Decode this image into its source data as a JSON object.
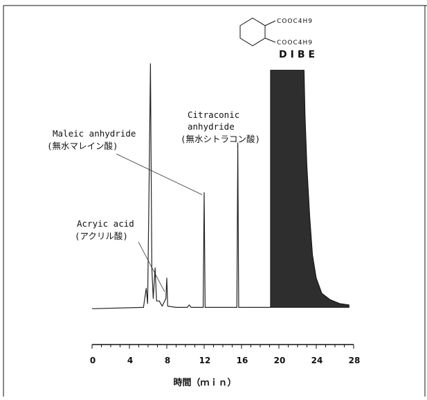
{
  "chart_data": {
    "type": "line",
    "title": "",
    "xlabel": "時間（ｍｉｎ）",
    "ylabel": "",
    "xlim": [
      0,
      28
    ],
    "x_ticks": [
      "0",
      "4",
      "8",
      "12",
      "16",
      "20",
      "24",
      "28"
    ],
    "grid": false,
    "legend": "none",
    "annotations": [
      {
        "id": "maleic",
        "lines": [
          "Maleic anhydride",
          "(無水マレイン酸)"
        ],
        "peak_x": 12.0
      },
      {
        "id": "citraconic",
        "lines": [
          "Citraconic",
          "anhydride",
          "(無水シトラコン酸)"
        ],
        "peak_x": 15.6
      },
      {
        "id": "acrylic",
        "lines": [
          "Acryic acid",
          "(アクリル酸)"
        ],
        "peak_x": 8.0
      }
    ],
    "structure": {
      "substituent_1": "COOC4H9",
      "substituent_2": "COOC4H9",
      "name": "DIBE"
    },
    "series": [
      {
        "values": [
          [
            0,
            0.04
          ],
          [
            5.5,
            0.045
          ],
          [
            5.8,
            0.12
          ],
          [
            5.95,
            0.06
          ],
          [
            6.1,
            0.5
          ],
          [
            6.25,
            1.0
          ],
          [
            6.4,
            0.2
          ],
          [
            6.55,
            0.08
          ],
          [
            6.75,
            0.2
          ],
          [
            6.9,
            0.07
          ],
          [
            7.2,
            0.07
          ],
          [
            7.5,
            0.05
          ],
          [
            7.9,
            0.08
          ],
          [
            8.0,
            0.16
          ],
          [
            8.1,
            0.05
          ],
          [
            9.0,
            0.045
          ],
          [
            10.2,
            0.045
          ],
          [
            10.4,
            0.055
          ],
          [
            10.6,
            0.045
          ],
          [
            11.9,
            0.045
          ],
          [
            12.0,
            0.495
          ],
          [
            12.1,
            0.045
          ],
          [
            15.5,
            0.045
          ],
          [
            15.6,
            0.69
          ],
          [
            15.7,
            0.045
          ],
          [
            19.1,
            0.045
          ]
        ]
      },
      {
        "fill": "#2e2e2e",
        "values": [
          [
            19.1,
            0.045
          ],
          [
            19.1,
            0.975
          ],
          [
            22.7,
            0.975
          ],
          [
            22.8,
            0.8
          ],
          [
            23.0,
            0.6
          ],
          [
            23.3,
            0.4
          ],
          [
            23.6,
            0.25
          ],
          [
            24.0,
            0.16
          ],
          [
            24.6,
            0.1
          ],
          [
            25.5,
            0.075
          ],
          [
            26.5,
            0.06
          ],
          [
            27.5,
            0.055
          ]
        ]
      }
    ]
  }
}
